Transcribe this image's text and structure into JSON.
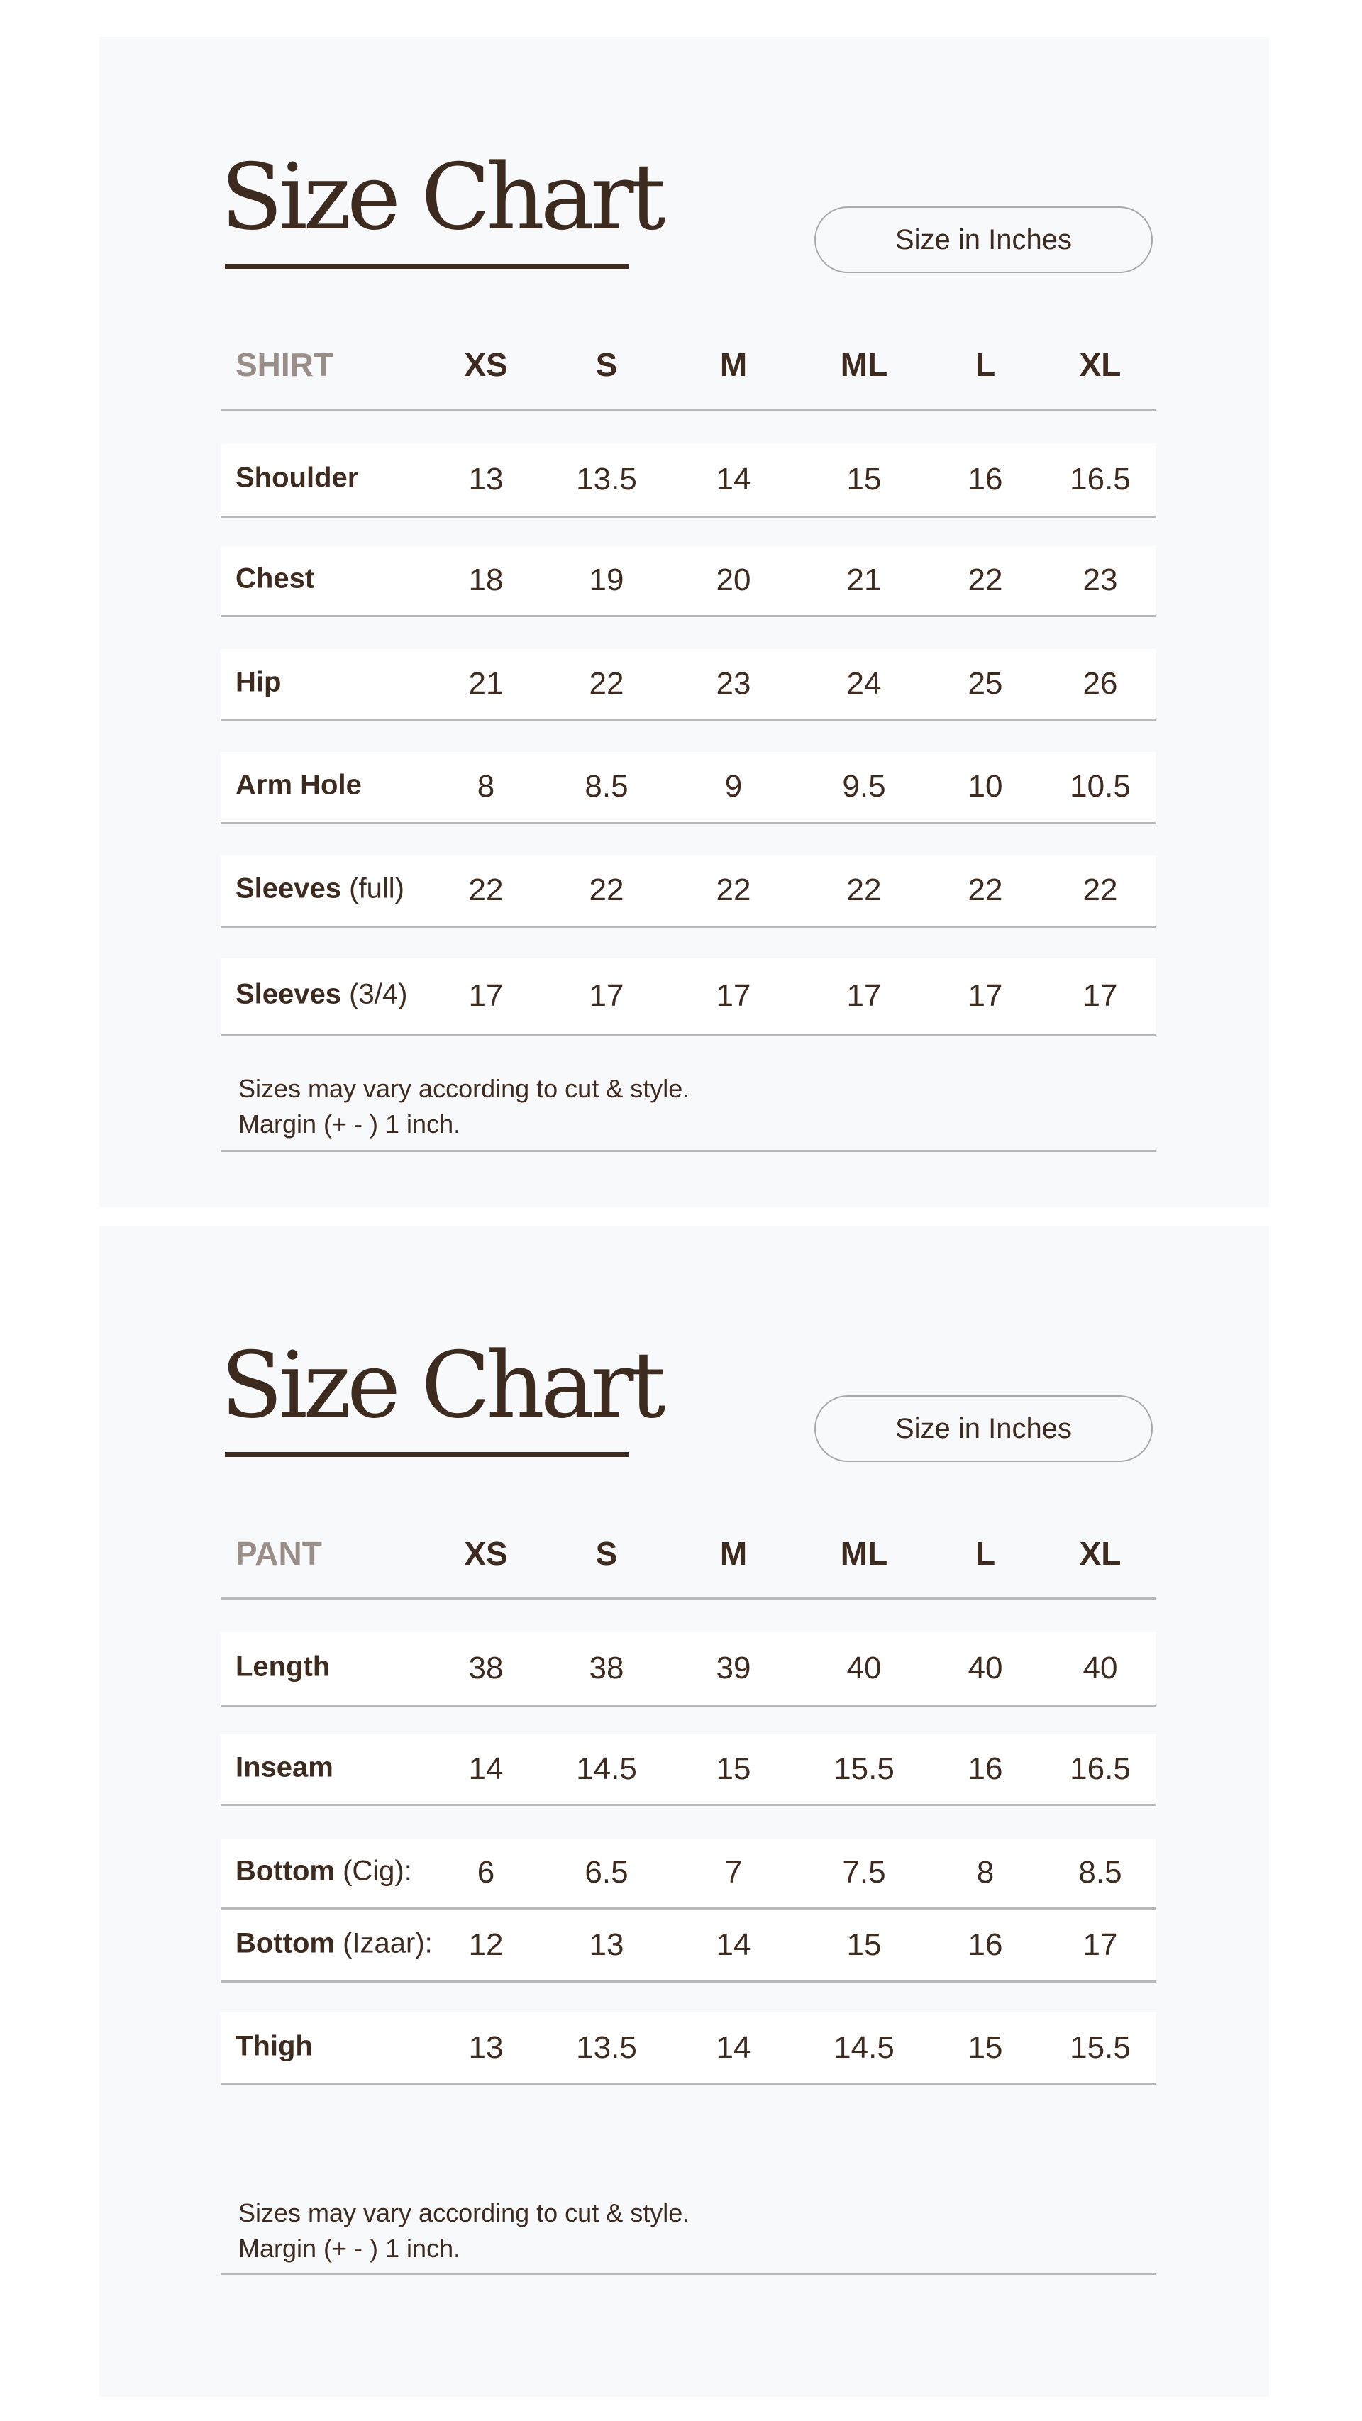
{
  "colors": {
    "text": "#3d2b20",
    "category_header": "#9a8f88",
    "panel_bg": "#f8f9fb",
    "row_bg": "#ffffff",
    "divider": "#b9b9bc"
  },
  "charts": [
    {
      "title": "Size Chart",
      "unit_badge": "Size in Inches",
      "category": "SHIRT",
      "sizes": [
        "XS",
        "S",
        "M",
        "ML",
        "L",
        "XL"
      ],
      "rows": [
        {
          "label": "Shoulder",
          "qualifier": "",
          "values": [
            "13",
            "13.5",
            "14",
            "15",
            "16",
            "16.5"
          ]
        },
        {
          "label": "Chest",
          "qualifier": "",
          "values": [
            "18",
            "19",
            "20",
            "21",
            "22",
            "23"
          ]
        },
        {
          "label": "Hip",
          "qualifier": "",
          "values": [
            "21",
            "22",
            "23",
            "24",
            "25",
            "26"
          ]
        },
        {
          "label": "Arm Hole",
          "qualifier": "",
          "values": [
            "8",
            "8.5",
            "9",
            "9.5",
            "10",
            "10.5"
          ]
        },
        {
          "label": "Sleeves",
          "qualifier": " (full)",
          "values": [
            "22",
            "22",
            "22",
            "22",
            "22",
            "22"
          ]
        },
        {
          "label": "Sleeves",
          "qualifier": " (3/4)",
          "values": [
            "17",
            "17",
            "17",
            "17",
            "17",
            "17"
          ]
        }
      ],
      "note_lines": [
        "Sizes may vary according to cut & style.",
        "Margin (+ - ) 1 inch."
      ]
    },
    {
      "title": "Size Chart",
      "unit_badge": "Size in Inches",
      "category": "PANT",
      "sizes": [
        "XS",
        "S",
        "M",
        "ML",
        "L",
        "XL"
      ],
      "rows": [
        {
          "label": "Length",
          "qualifier": "",
          "values": [
            "38",
            "38",
            "39",
            "40",
            "40",
            "40"
          ]
        },
        {
          "label": "Inseam",
          "qualifier": "",
          "values": [
            "14",
            "14.5",
            "15",
            "15.5",
            "16",
            "16.5"
          ]
        },
        {
          "label": "Bottom",
          "qualifier": " (Cig):",
          "values": [
            "6",
            "6.5",
            "7",
            "7.5",
            "8",
            "8.5"
          ]
        },
        {
          "label": "Bottom",
          "qualifier": " (Izaar):",
          "values": [
            "12",
            "13",
            "14",
            "15",
            "16",
            "17"
          ]
        },
        {
          "label": "Thigh",
          "qualifier": "",
          "values": [
            "13",
            "13.5",
            "14",
            "14.5",
            "15",
            "15.5"
          ]
        }
      ],
      "note_lines": [
        "Sizes may vary according to cut & style.",
        "Margin (+ - ) 1 inch."
      ]
    }
  ]
}
